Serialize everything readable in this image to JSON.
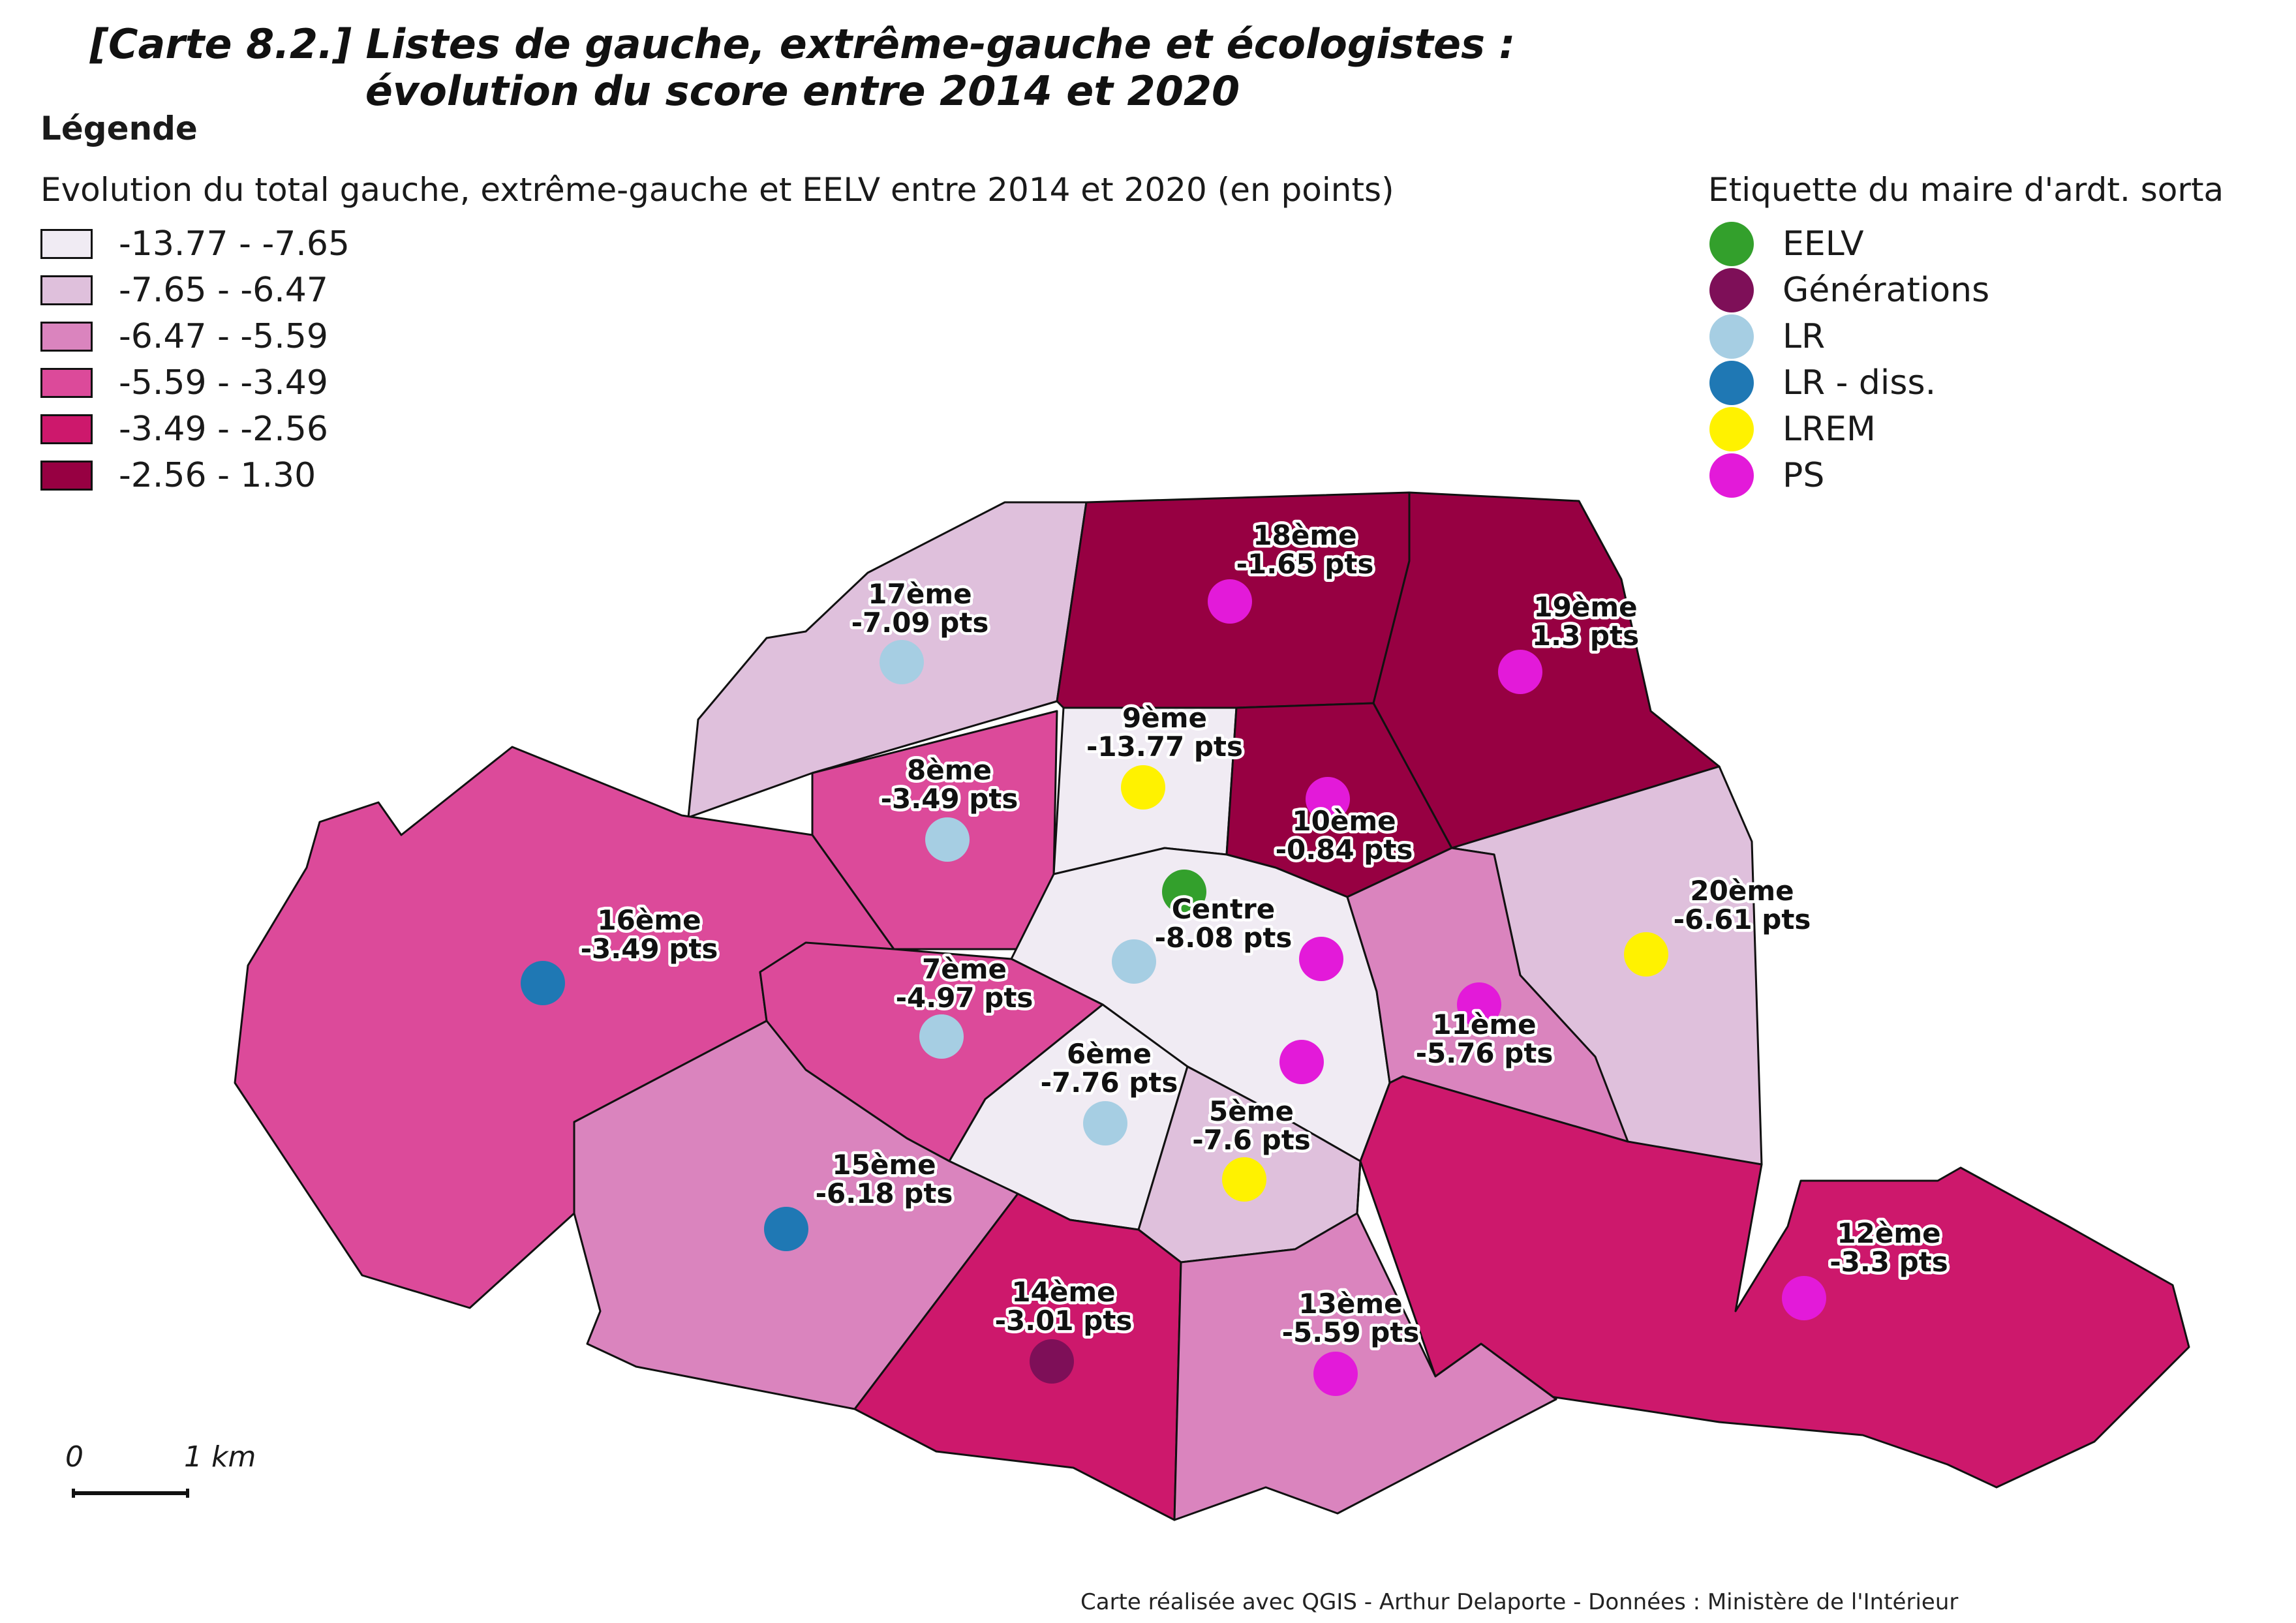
{
  "title": {
    "line1": "[Carte 8.2.] Listes de gauche, extrême-gauche et écologistes :",
    "line2": "évolution du score entre 2014 et 2020"
  },
  "legend": {
    "heading": "Légende",
    "choropleth_title": "Evolution du total gauche, extrême-gauche et EELV entre 2014 et 2020 (en points)",
    "classes": [
      {
        "label": "-13.77 - -7.65",
        "color": "#f0ebf3"
      },
      {
        "label": "-7.65 - -6.47",
        "color": "#dfc0dc"
      },
      {
        "label": "-6.47 - -5.59",
        "color": "#da84be"
      },
      {
        "label": "-5.59 - -3.49",
        "color": "#dc4a9a"
      },
      {
        "label": "-3.49 - -2.56",
        "color": "#cd186c"
      },
      {
        "label": "-2.56 - 1.30",
        "color": "#970042"
      }
    ],
    "mayor_title": "Etiquette du maire d'ardt. sorta",
    "mayor_parties": [
      {
        "label": "EELV",
        "color": "#33a02c"
      },
      {
        "label": "Générations",
        "color": "#7e0f58"
      },
      {
        "label": "LR",
        "color": "#a6cee3"
      },
      {
        "label": "LR - diss.",
        "color": "#1f78b4"
      },
      {
        "label": "LREM",
        "color": "#fff200"
      },
      {
        "label": "PS",
        "color": "#e31ad9"
      }
    ]
  },
  "arrondissements": [
    {
      "id": "17",
      "name": "17ème",
      "value": "-7.09 pts",
      "class": 1,
      "mayor": "LR"
    },
    {
      "id": "18",
      "name": "18ème",
      "value": "-1.65 pts",
      "class": 5,
      "mayor": "PS"
    },
    {
      "id": "19",
      "name": "19ème",
      "value": "1.3 pts",
      "class": 5,
      "mayor": "PS"
    },
    {
      "id": "9",
      "name": "9ème",
      "value": "-13.77 pts",
      "class": 0,
      "mayor": "LREM"
    },
    {
      "id": "8",
      "name": "8ème",
      "value": "-3.49 pts",
      "class": 3,
      "mayor": "LR"
    },
    {
      "id": "10",
      "name": "10ème",
      "value": "-0.84 pts",
      "class": 5,
      "mayor": "PS"
    },
    {
      "id": "16",
      "name": "16ème",
      "value": "-3.49 pts",
      "class": 3,
      "mayor": "LR - diss."
    },
    {
      "id": "centre",
      "name": "Centre",
      "value": "-8.08 pts",
      "class": 0,
      "mayor": [
        "EELV",
        "LR",
        "PS",
        "PS"
      ]
    },
    {
      "id": "20",
      "name": "20ème",
      "value": "-6.61 pts",
      "class": 1,
      "mayor": "LREM"
    },
    {
      "id": "7",
      "name": "7ème",
      "value": "-4.97 pts",
      "class": 3,
      "mayor": "LR"
    },
    {
      "id": "11",
      "name": "11ème",
      "value": "-5.76 pts",
      "class": 2,
      "mayor": "PS"
    },
    {
      "id": "6",
      "name": "6ème",
      "value": "-7.76 pts",
      "class": 0,
      "mayor": "LR"
    },
    {
      "id": "5",
      "name": "5ème",
      "value": "-7.6 pts",
      "class": 1,
      "mayor": "LREM"
    },
    {
      "id": "15",
      "name": "15ème",
      "value": "-6.18 pts",
      "class": 2,
      "mayor": "LR - diss."
    },
    {
      "id": "12",
      "name": "12ème",
      "value": "-3.3 pts",
      "class": 4,
      "mayor": "PS"
    },
    {
      "id": "14",
      "name": "14ème",
      "value": "-3.01 pts",
      "class": 4,
      "mayor": "Générations"
    },
    {
      "id": "13",
      "name": "13ème",
      "value": "-5.59 pts",
      "class": 2,
      "mayor": "PS"
    }
  ],
  "scale": {
    "zero": "0",
    "one": "1 km"
  },
  "credits": "Carte réalisée avec QGIS - Arthur Delaporte - Données : Ministère de l'Intérieur"
}
